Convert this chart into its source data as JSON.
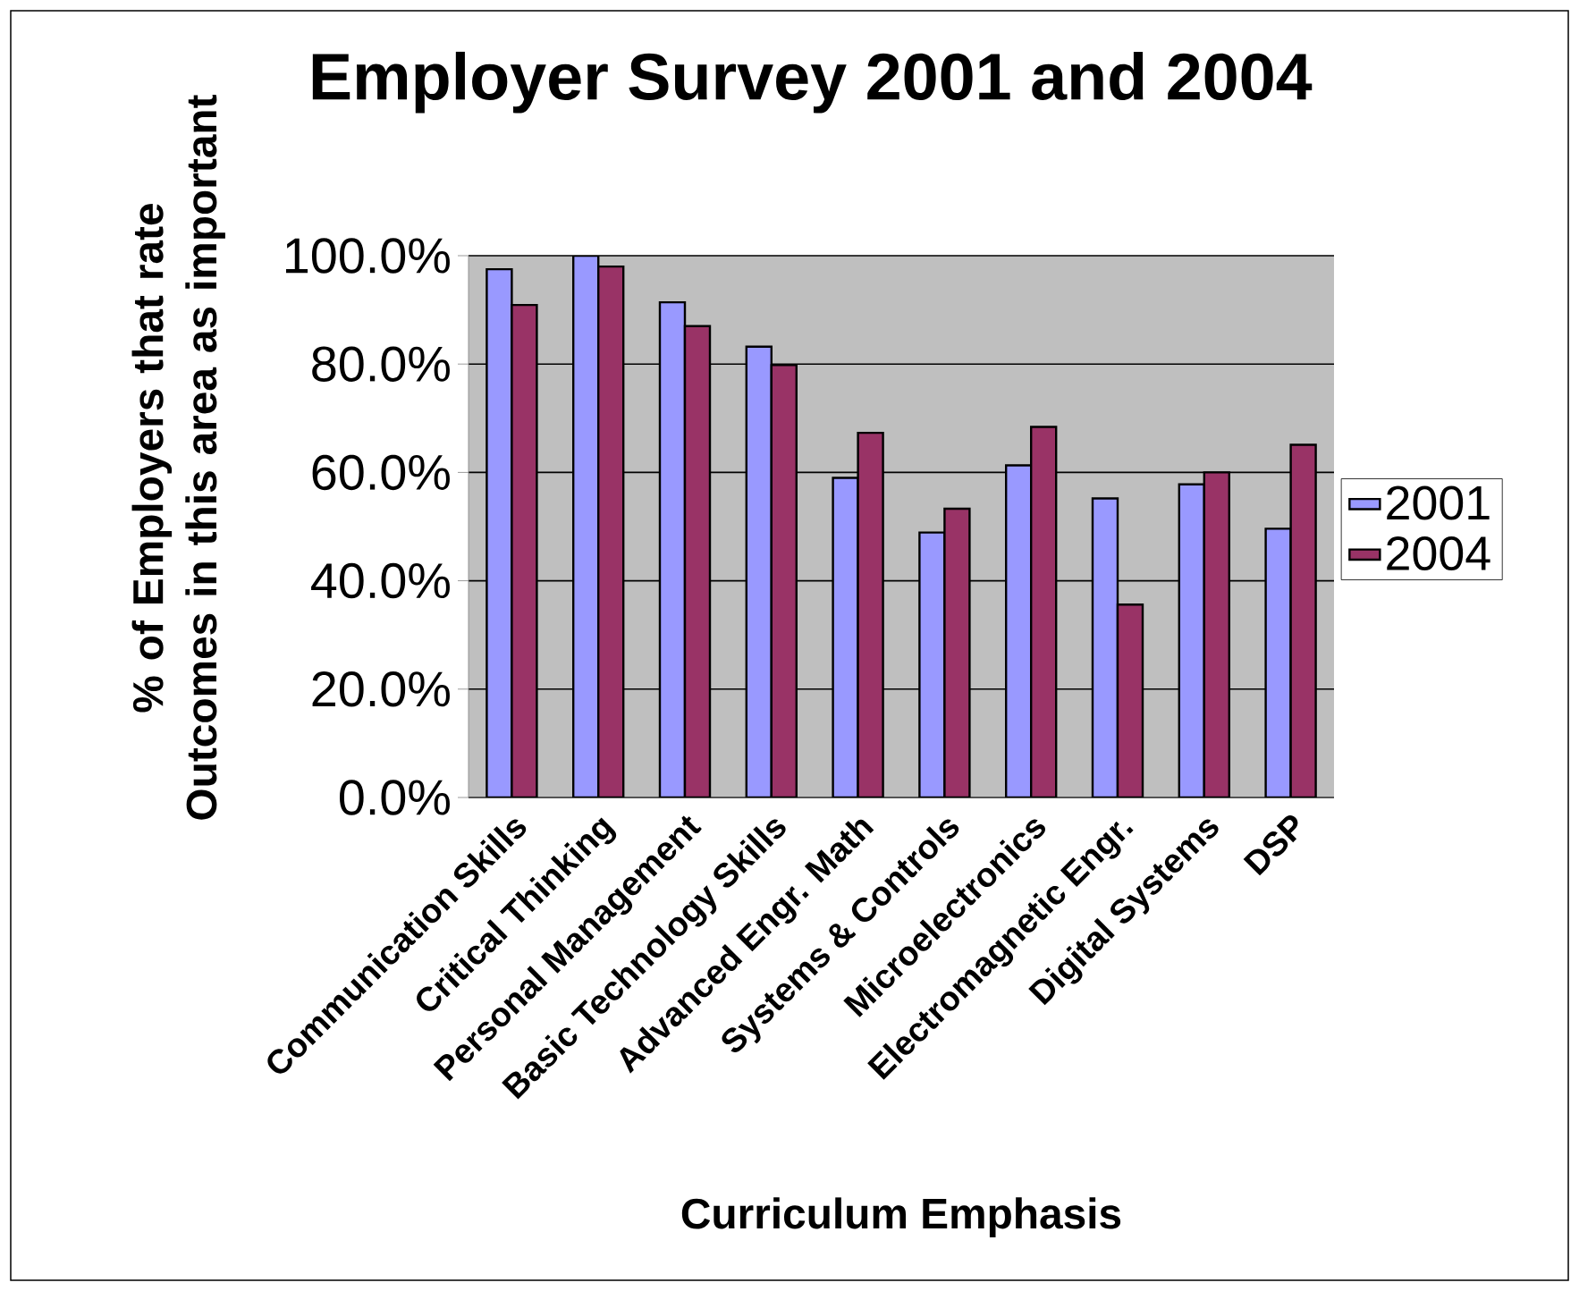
{
  "chart_data": {
    "type": "bar",
    "title": "Employer Survey 2001 and 2004",
    "xlabel": "Curriculum Emphasis",
    "ylabel": "% of Employers that rate Outcomes in this area as important",
    "categories": [
      "Communication Skills",
      "Critical Thinking",
      "Personal Management",
      "Basic Technology Skills",
      "Advanced Engr. Math",
      "Systems & Controls",
      "Microelectronics",
      "Electromagnetic Engr.",
      "Digital Systems",
      "DSP"
    ],
    "series": [
      {
        "name": "2001",
        "color": "#9999ff",
        "values": [
          97.5,
          100,
          91.4,
          83.2,
          59.0,
          48.9,
          61.3,
          55.2,
          57.8,
          49.6
        ]
      },
      {
        "name": "2004",
        "color": "#993366",
        "values": [
          90.9,
          98.0,
          87.0,
          79.8,
          67.3,
          53.3,
          68.4,
          35.6,
          60.0,
          65.1
        ]
      }
    ],
    "ylim": [
      0,
      100
    ],
    "yticks": [
      {
        "value": 0,
        "label": "0.0%"
      },
      {
        "value": 20,
        "label": "20.0%"
      },
      {
        "value": 40,
        "label": "40.0%"
      },
      {
        "value": 60,
        "label": "60.0%"
      },
      {
        "value": 80,
        "label": "80.0%"
      },
      {
        "value": 100,
        "label": "100.0%"
      }
    ],
    "grid": "y",
    "legend": "right"
  }
}
